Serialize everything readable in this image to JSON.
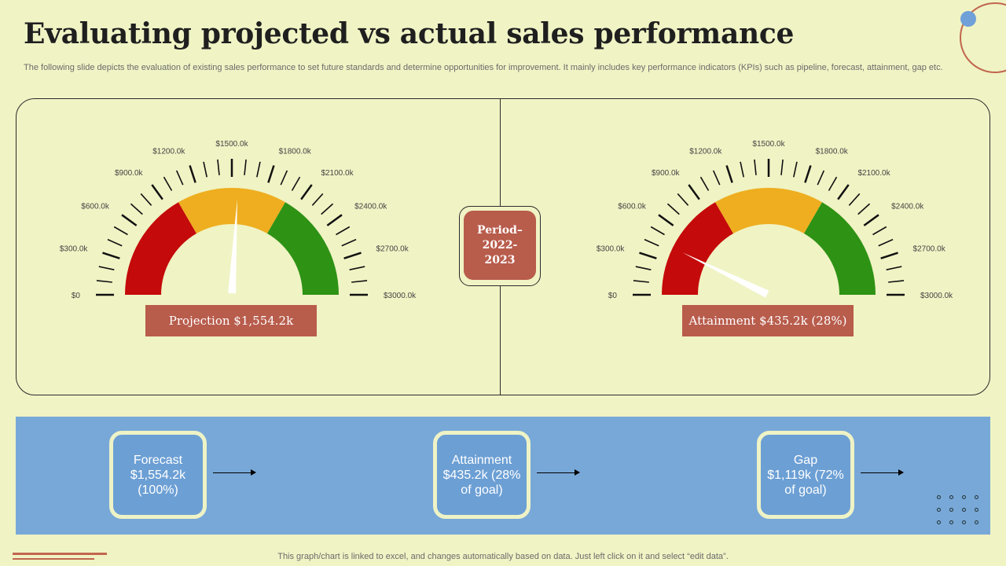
{
  "title": "Evaluating projected vs actual sales performance",
  "subtitle": "The following slide depicts the evaluation of existing sales performance to set future standards and determine opportunities for improvement. It mainly includes key performance indicators (KPIs)  such as pipeline, forecast, attainment, gap etc.",
  "period": {
    "line1": "Period–",
    "line2": "2022-",
    "line3": "2023"
  },
  "chart_data": [
    {
      "type": "gauge",
      "min": 0,
      "max": 3000,
      "tick_labels": [
        "$0",
        "$300.0k",
        "$600.0k",
        "$900.0k",
        "$1200.0k",
        "$1500.0k",
        "$1800.0k",
        "$2100.0k",
        "$2400.0k",
        "$2700.0k",
        "$3000.0k"
      ],
      "bands": [
        {
          "from": 0,
          "to": 1000,
          "color": "#c40a0a"
        },
        {
          "from": 1000,
          "to": 2000,
          "color": "#eeae20"
        },
        {
          "from": 2000,
          "to": 3000,
          "color": "#2e9215"
        }
      ],
      "value": 1554.2,
      "label": "Projection $1,554.2k"
    },
    {
      "type": "gauge",
      "min": 0,
      "max": 3000,
      "tick_labels": [
        "$0",
        "$300.0k",
        "$600.0k",
        "$900.0k",
        "$1200.0k",
        "$1500.0k",
        "$1800.0k",
        "$2100.0k",
        "$2400.0k",
        "$2700.0k",
        "$3000.0k"
      ],
      "bands": [
        {
          "from": 0,
          "to": 1000,
          "color": "#c40a0a"
        },
        {
          "from": 1000,
          "to": 2000,
          "color": "#eeae20"
        },
        {
          "from": 2000,
          "to": 3000,
          "color": "#2e9215"
        }
      ],
      "value": 435.2,
      "label": "Attainment $435.2k (28%)"
    }
  ],
  "kpis": [
    {
      "line1": "Forecast",
      "line2": "$1,554.2k",
      "line3": "(100%)"
    },
    {
      "line1": "Attainment",
      "line2": "$435.2k (28%",
      "line3": "of goal)"
    },
    {
      "line1": "Gap",
      "line2": "$1,119k (72%",
      "line3": "of goal)"
    }
  ],
  "footer": "This graph/chart is linked to excel,  and changes automatically based on data. Just left click on it and select “edit data”."
}
